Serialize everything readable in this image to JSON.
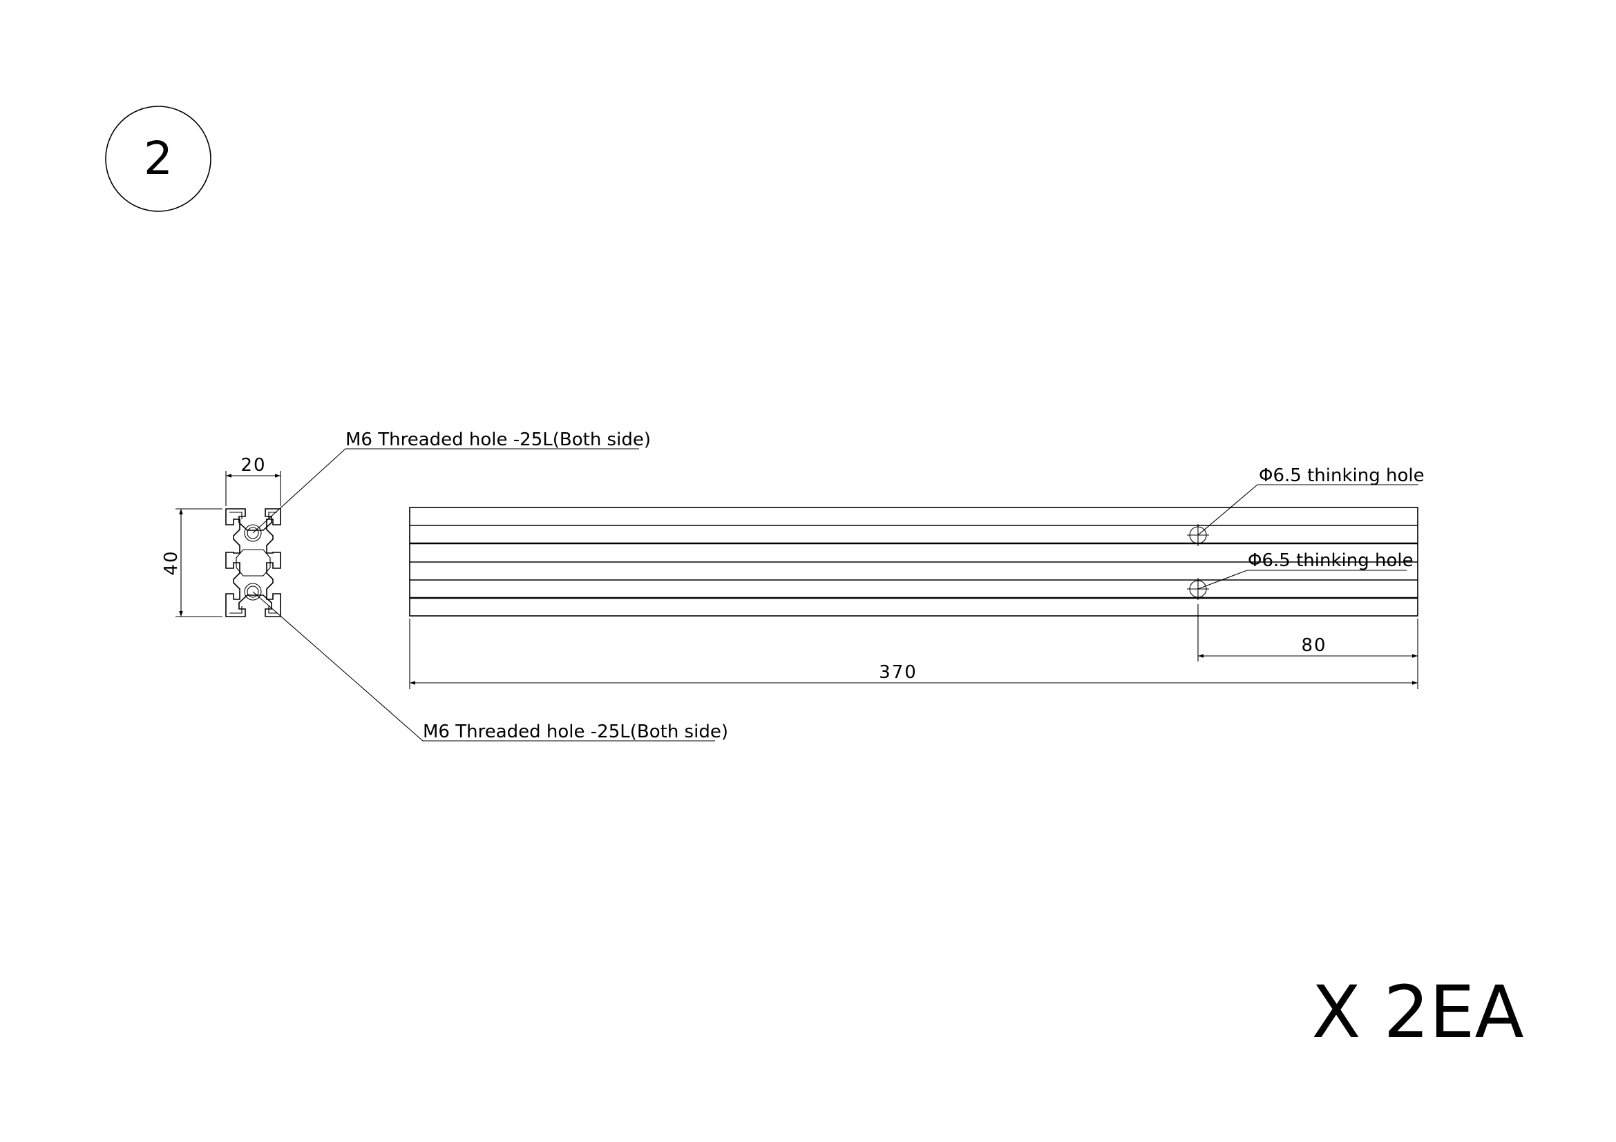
{
  "sheet": {
    "part_number": "2",
    "quantity": "X 2EA"
  },
  "profile_section": {
    "width_dim": "20",
    "height_dim": "40"
  },
  "notes": {
    "top_thread": "M6 Threaded hole -25L(Both side)",
    "bottom_thread": "M6 Threaded hole -25L(Both side)",
    "upper_hole": "Φ6.5 thinking hole",
    "lower_hole": "Φ6.5 thinking hole"
  },
  "side_view": {
    "length_dim": "370",
    "hole_offset_dim": "80"
  }
}
